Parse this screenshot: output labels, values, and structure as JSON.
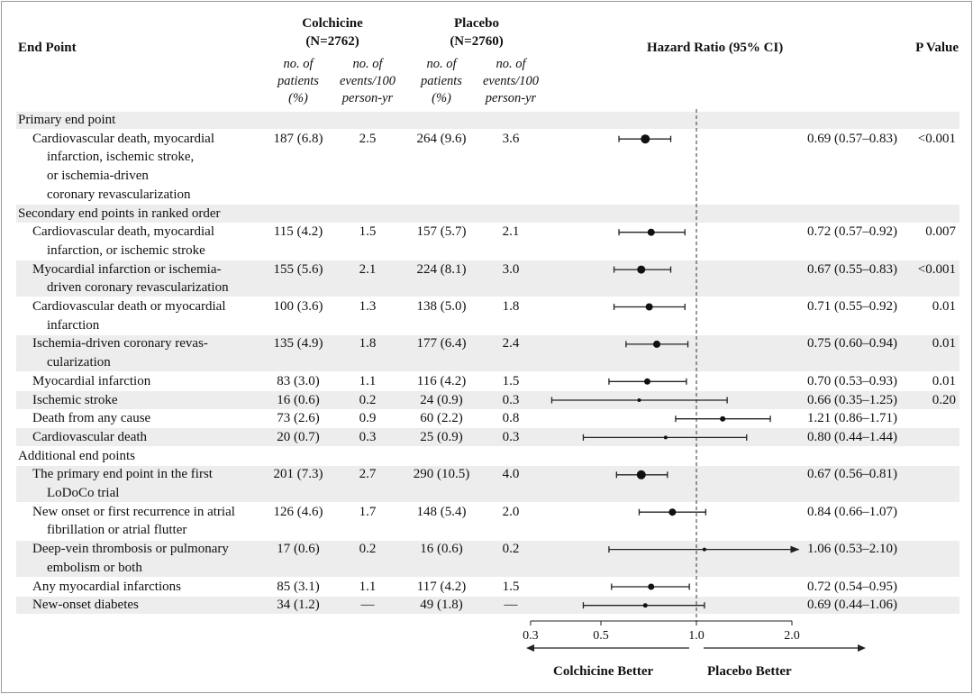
{
  "header": {
    "endpoint_label": "End Point",
    "colchicine": [
      "Colchicine",
      "(N=2762)"
    ],
    "placebo": [
      "Placebo",
      "(N=2760)"
    ],
    "hr_label": "Hazard Ratio (95% CI)",
    "p_label": "P Value",
    "sub_patients": [
      "no. of",
      "patients",
      "(%)"
    ],
    "sub_events": [
      "no. of",
      "events/100",
      "person-yr"
    ]
  },
  "rows": [
    {
      "type": "section",
      "label": [
        "Primary end point"
      ]
    },
    {
      "type": "data",
      "label": [
        "Cardiovascular death, myocardial",
        "infarction, ischemic stroke,",
        "or ischemia-driven",
        "coronary revascularization"
      ],
      "indent": [
        1,
        2,
        2,
        2
      ],
      "c_n": "187 (6.8)",
      "c_e": "2.5",
      "p_n": "264 (9.6)",
      "p_e": "3.6",
      "hr_text": "0.69 (0.57–0.83)",
      "pval": "<0.001",
      "hr": 0.69,
      "lo": 0.57,
      "hi": 0.83,
      "size": 5
    },
    {
      "type": "section",
      "label": [
        "Secondary end points in ranked order"
      ]
    },
    {
      "type": "data",
      "label": [
        "Cardiovascular death, myocardial",
        "infarction, or ischemic stroke"
      ],
      "indent": [
        1,
        2
      ],
      "c_n": "115 (4.2)",
      "c_e": "1.5",
      "p_n": "157 (5.7)",
      "p_e": "2.1",
      "hr_text": "0.72 (0.57–0.92)",
      "pval": "0.007",
      "hr": 0.72,
      "lo": 0.57,
      "hi": 0.92,
      "size": 4
    },
    {
      "type": "data",
      "label": [
        "Myocardial infarction or ischemia-",
        "driven coronary revascularization"
      ],
      "indent": [
        1,
        2
      ],
      "c_n": "155 (5.6)",
      "c_e": "2.1",
      "p_n": "224 (8.1)",
      "p_e": "3.0",
      "hr_text": "0.67 (0.55–0.83)",
      "pval": "<0.001",
      "hr": 0.67,
      "lo": 0.55,
      "hi": 0.83,
      "size": 4.5
    },
    {
      "type": "data",
      "label": [
        "Cardiovascular death or myocardial",
        "infarction"
      ],
      "indent": [
        1,
        2
      ],
      "c_n": "100 (3.6)",
      "c_e": "1.3",
      "p_n": "138 (5.0)",
      "p_e": "1.8",
      "hr_text": "0.71 (0.55–0.92)",
      "pval": "0.01",
      "hr": 0.71,
      "lo": 0.55,
      "hi": 0.92,
      "size": 4
    },
    {
      "type": "data",
      "label": [
        "Ischemia-driven coronary revas-",
        "cularization"
      ],
      "indent": [
        1,
        2
      ],
      "c_n": "135 (4.9)",
      "c_e": "1.8",
      "p_n": "177 (6.4)",
      "p_e": "2.4",
      "hr_text": "0.75 (0.60–0.94)",
      "pval": "0.01",
      "hr": 0.75,
      "lo": 0.6,
      "hi": 0.94,
      "size": 4
    },
    {
      "type": "data",
      "label": [
        "Myocardial infarction"
      ],
      "indent": [
        1
      ],
      "c_n": "83 (3.0)",
      "c_e": "1.1",
      "p_n": "116 (4.2)",
      "p_e": "1.5",
      "hr_text": "0.70 (0.53–0.93)",
      "pval": "0.01",
      "hr": 0.7,
      "lo": 0.53,
      "hi": 0.93,
      "size": 3.5
    },
    {
      "type": "data",
      "label": [
        "Ischemic stroke"
      ],
      "indent": [
        1
      ],
      "c_n": "16 (0.6)",
      "c_e": "0.2",
      "p_n": "24 (0.9)",
      "p_e": "0.3",
      "hr_text": "0.66 (0.35–1.25)",
      "pval": "0.20",
      "hr": 0.66,
      "lo": 0.35,
      "hi": 1.25,
      "size": 2
    },
    {
      "type": "data",
      "label": [
        "Death from any cause"
      ],
      "indent": [
        1
      ],
      "c_n": "73 (2.6)",
      "c_e": "0.9",
      "p_n": "60 (2.2)",
      "p_e": "0.8",
      "hr_text": "1.21 (0.86–1.71)",
      "pval": "",
      "hr": 1.21,
      "lo": 0.86,
      "hi": 1.71,
      "size": 3
    },
    {
      "type": "data",
      "label": [
        "Cardiovascular death"
      ],
      "indent": [
        1
      ],
      "c_n": "20 (0.7)",
      "c_e": "0.3",
      "p_n": "25 (0.9)",
      "p_e": "0.3",
      "hr_text": "0.80 (0.44–1.44)",
      "pval": "",
      "hr": 0.8,
      "lo": 0.44,
      "hi": 1.44,
      "size": 2
    },
    {
      "type": "section",
      "label": [
        "Additional end points"
      ]
    },
    {
      "type": "data",
      "label": [
        "The primary end point in the first",
        "LoDoCo trial"
      ],
      "indent": [
        1,
        2
      ],
      "c_n": "201 (7.3)",
      "c_e": "2.7",
      "p_n": "290 (10.5)",
      "p_e": "4.0",
      "hr_text": "0.67 (0.56–0.81)",
      "pval": "",
      "hr": 0.67,
      "lo": 0.56,
      "hi": 0.81,
      "size": 5
    },
    {
      "type": "data",
      "label": [
        "New onset or first recurrence in atrial",
        "fibrillation or atrial flutter"
      ],
      "indent": [
        1,
        2
      ],
      "c_n": "126 (4.6)",
      "c_e": "1.7",
      "p_n": "148 (5.4)",
      "p_e": "2.0",
      "hr_text": "0.84 (0.66–1.07)",
      "pval": "",
      "hr": 0.84,
      "lo": 0.66,
      "hi": 1.07,
      "size": 4
    },
    {
      "type": "data",
      "label": [
        "Deep-vein thrombosis or pulmonary",
        "embolism or both"
      ],
      "indent": [
        1,
        2
      ],
      "c_n": "17 (0.6)",
      "c_e": "0.2",
      "p_n": "16 (0.6)",
      "p_e": "0.2",
      "hr_text": "1.06 (0.53–2.10)",
      "pval": "",
      "hr": 1.06,
      "lo": 0.53,
      "hi": 2.1,
      "size": 2,
      "arrow": true
    },
    {
      "type": "data",
      "label": [
        "Any myocardial infarctions"
      ],
      "indent": [
        1
      ],
      "c_n": "85 (3.1)",
      "c_e": "1.1",
      "p_n": "117 (4.2)",
      "p_e": "1.5",
      "hr_text": "0.72 (0.54–0.95)",
      "pval": "",
      "hr": 0.72,
      "lo": 0.54,
      "hi": 0.95,
      "size": 3.5
    },
    {
      "type": "data",
      "label": [
        "New-onset diabetes"
      ],
      "indent": [
        1
      ],
      "c_n": "34 (1.2)",
      "c_e": "—",
      "p_n": "49 (1.8)",
      "p_e": "—",
      "hr_text": "0.69 (0.44–1.06)",
      "pval": "",
      "hr": 0.69,
      "lo": 0.44,
      "hi": 1.06,
      "size": 2.5
    }
  ],
  "chart_data": {
    "type": "scatter",
    "subtype": "forest-plot",
    "xlabel": "Hazard Ratio (95% CI)",
    "x_scale": "log",
    "xlim": [
      0.3,
      2.0
    ],
    "xticks": [
      0.3,
      0.5,
      1.0,
      2.0
    ],
    "tick_labels": [
      "0.3",
      "0.5",
      "1.0",
      "2.0"
    ],
    "reference_line": 1.0,
    "direction_labels": {
      "left": "Colchicine Better",
      "right": "Placebo Better"
    },
    "series": [
      {
        "name": "Cardiovascular death, myocardial infarction, ischemic stroke, or ischemia-driven coronary revascularization",
        "hr": 0.69,
        "ci": [
          0.57,
          0.83
        ],
        "p": "<0.001"
      },
      {
        "name": "Cardiovascular death, myocardial infarction, or ischemic stroke",
        "hr": 0.72,
        "ci": [
          0.57,
          0.92
        ],
        "p": "0.007"
      },
      {
        "name": "Myocardial infarction or ischemia-driven coronary revascularization",
        "hr": 0.67,
        "ci": [
          0.55,
          0.83
        ],
        "p": "<0.001"
      },
      {
        "name": "Cardiovascular death or myocardial infarction",
        "hr": 0.71,
        "ci": [
          0.55,
          0.92
        ],
        "p": "0.01"
      },
      {
        "name": "Ischemia-driven coronary revascularization",
        "hr": 0.75,
        "ci": [
          0.6,
          0.94
        ],
        "p": "0.01"
      },
      {
        "name": "Myocardial infarction",
        "hr": 0.7,
        "ci": [
          0.53,
          0.93
        ],
        "p": "0.01"
      },
      {
        "name": "Ischemic stroke",
        "hr": 0.66,
        "ci": [
          0.35,
          1.25
        ],
        "p": "0.20"
      },
      {
        "name": "Death from any cause",
        "hr": 1.21,
        "ci": [
          0.86,
          1.71
        ]
      },
      {
        "name": "Cardiovascular death",
        "hr": 0.8,
        "ci": [
          0.44,
          1.44
        ]
      },
      {
        "name": "The primary end point in the first LoDoCo trial",
        "hr": 0.67,
        "ci": [
          0.56,
          0.81
        ]
      },
      {
        "name": "New onset or first recurrence in atrial fibrillation or atrial flutter",
        "hr": 0.84,
        "ci": [
          0.66,
          1.07
        ]
      },
      {
        "name": "Deep-vein thrombosis or pulmonary embolism or both",
        "hr": 1.06,
        "ci": [
          0.53,
          2.1
        ]
      },
      {
        "name": "Any myocardial infarctions",
        "hr": 0.72,
        "ci": [
          0.54,
          0.95
        ]
      },
      {
        "name": "New-onset diabetes",
        "hr": 0.69,
        "ci": [
          0.44,
          1.06
        ]
      }
    ]
  }
}
